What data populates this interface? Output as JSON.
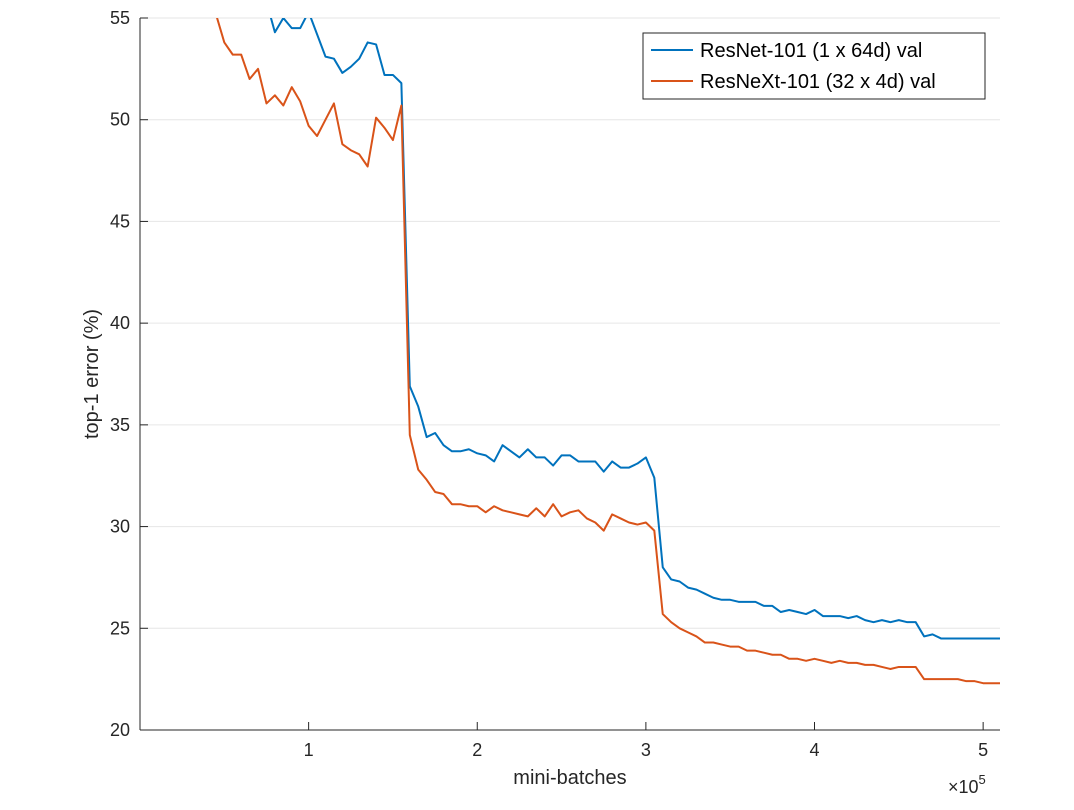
{
  "chart_data": {
    "type": "line",
    "title": "",
    "xlabel": "mini-batches",
    "ylabel": "top-1 error (%)",
    "x_exponent_label": "×10",
    "x_exponent_power": "5",
    "xlim": [
      0,
      5.1
    ],
    "ylim": [
      20,
      55
    ],
    "xticks": [
      1,
      2,
      3,
      4,
      5
    ],
    "xtick_labels": [
      "1",
      "2",
      "3",
      "4",
      "5"
    ],
    "yticks": [
      20,
      25,
      30,
      35,
      40,
      45,
      50,
      55
    ],
    "ytick_labels": [
      "20",
      "25",
      "30",
      "35",
      "40",
      "45",
      "50",
      "55"
    ],
    "grid": "horizontal",
    "legend": "top-right",
    "series": [
      {
        "name": "ResNet-101 (1 x 64d) val",
        "color": "#0072BD",
        "x": [
          0.5,
          0.6,
          0.7,
          0.75,
          0.8,
          0.85,
          0.9,
          0.95,
          1.0,
          1.05,
          1.1,
          1.15,
          1.2,
          1.25,
          1.3,
          1.35,
          1.4,
          1.45,
          1.5,
          1.55,
          1.6,
          1.65,
          1.7,
          1.75,
          1.8,
          1.85,
          1.9,
          1.95,
          2.0,
          2.05,
          2.1,
          2.15,
          2.2,
          2.25,
          2.3,
          2.35,
          2.4,
          2.45,
          2.5,
          2.55,
          2.6,
          2.65,
          2.7,
          2.75,
          2.8,
          2.85,
          2.9,
          2.95,
          3.0,
          3.05,
          3.1,
          3.15,
          3.2,
          3.25,
          3.3,
          3.35,
          3.4,
          3.45,
          3.5,
          3.55,
          3.6,
          3.65,
          3.7,
          3.75,
          3.8,
          3.85,
          3.9,
          3.95,
          4.0,
          4.05,
          4.1,
          4.15,
          4.2,
          4.25,
          4.3,
          4.35,
          4.4,
          4.45,
          4.5,
          4.55,
          4.6,
          4.65,
          4.7,
          4.75,
          4.8,
          4.85,
          4.9,
          4.95,
          5.0,
          5.05,
          5.1
        ],
        "y": [
          57.5,
          57.0,
          56.3,
          55.8,
          54.3,
          55.0,
          54.5,
          54.5,
          55.3,
          54.2,
          53.1,
          53.0,
          52.3,
          52.6,
          53.0,
          53.8,
          53.7,
          52.2,
          52.2,
          51.8,
          36.9,
          35.9,
          34.4,
          34.6,
          34.0,
          33.7,
          33.7,
          33.8,
          33.6,
          33.5,
          33.2,
          34.0,
          33.7,
          33.4,
          33.8,
          33.4,
          33.4,
          33.0,
          33.5,
          33.5,
          33.2,
          33.2,
          33.2,
          32.7,
          33.2,
          32.9,
          32.9,
          33.1,
          33.4,
          32.4,
          28.0,
          27.4,
          27.3,
          27.0,
          26.9,
          26.7,
          26.5,
          26.4,
          26.4,
          26.3,
          26.3,
          26.3,
          26.1,
          26.1,
          25.8,
          25.9,
          25.8,
          25.7,
          25.9,
          25.6,
          25.6,
          25.6,
          25.5,
          25.6,
          25.4,
          25.3,
          25.4,
          25.3,
          25.4,
          25.3,
          25.3,
          24.6,
          24.7,
          24.5,
          24.5,
          24.5,
          24.5,
          24.5,
          24.5,
          24.5,
          24.5
        ]
      },
      {
        "name": "ResNeXt-101 (32 x 4d) val",
        "color": "#D95319",
        "x": [
          0.4,
          0.45,
          0.5,
          0.55,
          0.6,
          0.65,
          0.7,
          0.75,
          0.8,
          0.85,
          0.9,
          0.95,
          1.0,
          1.05,
          1.1,
          1.15,
          1.2,
          1.25,
          1.3,
          1.35,
          1.4,
          1.45,
          1.5,
          1.55,
          1.6,
          1.65,
          1.7,
          1.75,
          1.8,
          1.85,
          1.9,
          1.95,
          2.0,
          2.05,
          2.1,
          2.15,
          2.2,
          2.25,
          2.3,
          2.35,
          2.4,
          2.45,
          2.5,
          2.55,
          2.6,
          2.65,
          2.7,
          2.75,
          2.8,
          2.85,
          2.9,
          2.95,
          3.0,
          3.05,
          3.1,
          3.15,
          3.2,
          3.25,
          3.3,
          3.35,
          3.4,
          3.45,
          3.5,
          3.55,
          3.6,
          3.65,
          3.7,
          3.75,
          3.8,
          3.85,
          3.9,
          3.95,
          4.0,
          4.05,
          4.1,
          4.15,
          4.2,
          4.25,
          4.3,
          4.35,
          4.4,
          4.45,
          4.5,
          4.55,
          4.6,
          4.65,
          4.7,
          4.75,
          4.8,
          4.85,
          4.9,
          4.95,
          5.0,
          5.05,
          5.1
        ],
        "y": [
          55.5,
          55.2,
          53.8,
          53.2,
          53.2,
          52.0,
          52.5,
          50.8,
          51.2,
          50.7,
          51.6,
          50.9,
          49.7,
          49.2,
          50.0,
          50.8,
          48.8,
          48.5,
          48.3,
          47.7,
          50.1,
          49.6,
          49.0,
          50.7,
          34.5,
          32.8,
          32.3,
          31.7,
          31.6,
          31.1,
          31.1,
          31.0,
          31.0,
          30.7,
          31.0,
          30.8,
          30.7,
          30.6,
          30.5,
          30.9,
          30.5,
          31.1,
          30.5,
          30.7,
          30.8,
          30.4,
          30.2,
          29.8,
          30.6,
          30.4,
          30.2,
          30.1,
          30.2,
          29.8,
          25.7,
          25.3,
          25.0,
          24.8,
          24.6,
          24.3,
          24.3,
          24.2,
          24.1,
          24.1,
          23.9,
          23.9,
          23.8,
          23.7,
          23.7,
          23.5,
          23.5,
          23.4,
          23.5,
          23.4,
          23.3,
          23.4,
          23.3,
          23.3,
          23.2,
          23.2,
          23.1,
          23.0,
          23.1,
          23.1,
          23.1,
          22.5,
          22.5,
          22.5,
          22.5,
          22.5,
          22.4,
          22.4,
          22.3,
          22.3,
          22.3
        ]
      }
    ]
  }
}
